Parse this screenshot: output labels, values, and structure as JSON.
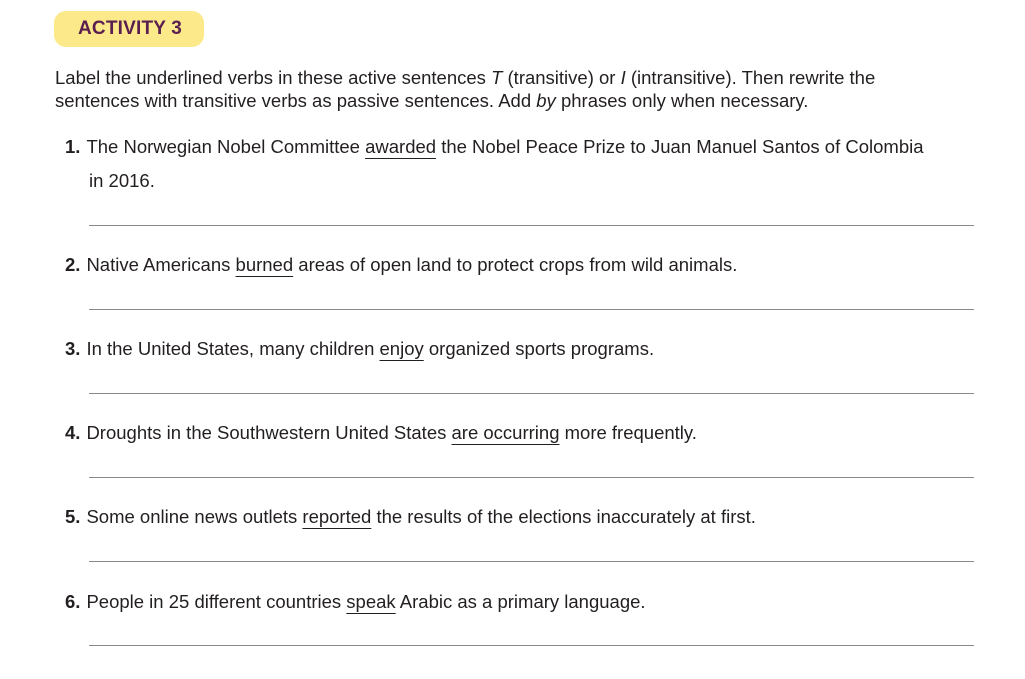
{
  "badge": "ACTIVITY 3",
  "instructions": {
    "p1": "Label the underlined verbs in these active sentences ",
    "T": "T",
    "p2": " (transitive) or ",
    "I": "I",
    "p3": " (intransitive). Then rewrite the sentences with transitive verbs as passive sentences. Add ",
    "by": "by",
    "p4": " phrases only when necessary."
  },
  "items": [
    {
      "num": "1.",
      "pre": "The Norwegian Nobel Committee ",
      "verb": "awarded",
      "post": " the Nobel Peace Prize to Juan Manuel Santos of Colombia",
      "cont": "in 2016."
    },
    {
      "num": "2.",
      "pre": "Native Americans ",
      "verb": "burned",
      "post": " areas of open land to protect crops from wild animals."
    },
    {
      "num": "3.",
      "pre": "In the United States, many children ",
      "verb": "enjoy",
      "post": " organized sports programs."
    },
    {
      "num": "4.",
      "pre": "Droughts in the Southwestern United States ",
      "verb": "are occurring",
      "post": " more frequently."
    },
    {
      "num": "5.",
      "pre": "Some online news outlets ",
      "verb": "reported",
      "post": " the results of the elections inaccurately at first."
    },
    {
      "num": "6.",
      "pre": "People in 25 different countries ",
      "verb": "speak",
      "post": " Arabic as a primary language."
    }
  ]
}
